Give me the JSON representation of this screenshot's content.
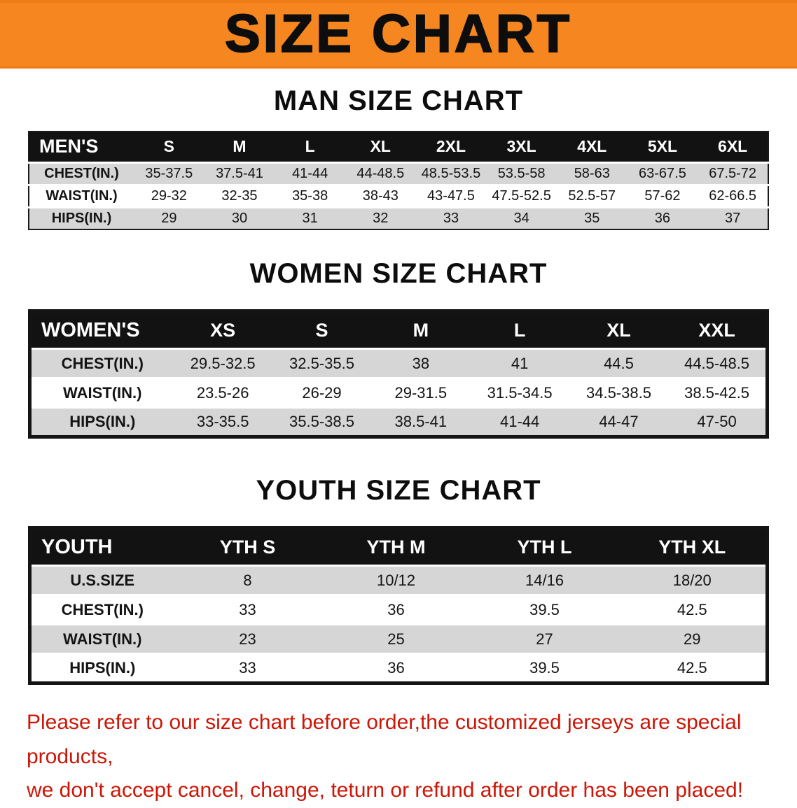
{
  "banner": {
    "title": "SIZE CHART",
    "bg_color": "#f6861f"
  },
  "sections": [
    {
      "title": "MAN SIZE CHART",
      "header": [
        "MEN'S",
        "S",
        "M",
        "L",
        "XL",
        "2XL",
        "3XL",
        "4XL",
        "5XL",
        "6XL"
      ],
      "rows": [
        [
          "CHEST(IN.)",
          "35-37.5",
          "37.5-41",
          "41-44",
          "44-48.5",
          "48.5-53.5",
          "53.5-58",
          "58-63",
          "63-67.5",
          "67.5-72"
        ],
        [
          "WAIST(IN.)",
          "29-32",
          "32-35",
          "35-38",
          "38-43",
          "43-47.5",
          "47.5-52.5",
          "52.5-57",
          "57-62",
          "62-66.5"
        ],
        [
          "HIPS(IN.)",
          "29",
          "30",
          "31",
          "32",
          "33",
          "34",
          "35",
          "36",
          "37"
        ]
      ]
    },
    {
      "title": "WOMEN SIZE CHART",
      "header": [
        "WOMEN'S",
        "XS",
        "S",
        "M",
        "L",
        "XL",
        "XXL"
      ],
      "rows": [
        [
          "CHEST(IN.)",
          "29.5-32.5",
          "32.5-35.5",
          "38",
          "41",
          "44.5",
          "44.5-48.5"
        ],
        [
          "WAIST(IN.)",
          "23.5-26",
          "26-29",
          "29-31.5",
          "31.5-34.5",
          "34.5-38.5",
          "38.5-42.5"
        ],
        [
          "HIPS(IN.)",
          "33-35.5",
          "35.5-38.5",
          "38.5-41",
          "41-44",
          "44-47",
          "47-50"
        ]
      ]
    },
    {
      "title": "YOUTH SIZE CHART",
      "header": [
        "YOUTH",
        "YTH S",
        "YTH M",
        "YTH L",
        "YTH XL"
      ],
      "rows": [
        [
          "U.S.SIZE",
          "8",
          "10/12",
          "14/16",
          "18/20"
        ],
        [
          "CHEST(IN.)",
          "33",
          "36",
          "39.5",
          "42.5"
        ],
        [
          "WAIST(IN.)",
          "23",
          "25",
          "27",
          "29"
        ],
        [
          "HIPS(IN.)",
          "33",
          "36",
          "39.5",
          "42.5"
        ]
      ]
    }
  ],
  "footer": {
    "color": "#cc1607",
    "lines": [
      "Please refer to our size chart before order,the customized jerseys are special products,",
      "we don't accept cancel, change, teturn or refund after order has been placed!"
    ]
  }
}
